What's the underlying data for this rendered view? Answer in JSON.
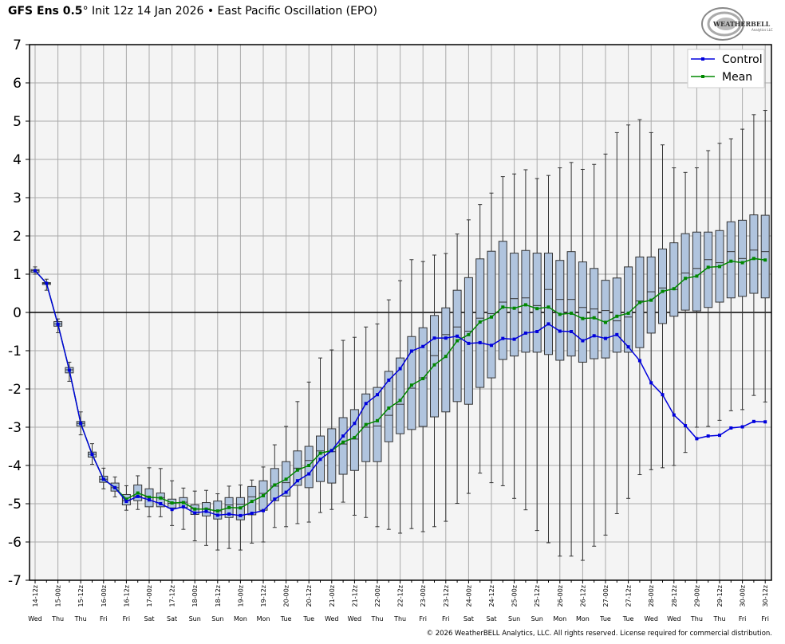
{
  "title": {
    "model": "GFS Ens 0.5",
    "degree": "°",
    "rest": " Init 12z 14 Jan 2026 • East Pacific Oscillation (EPO)"
  },
  "logo": {
    "name": "WeatherBELL",
    "sub": "Analytics LLC"
  },
  "copyright": "© 2026 WeatherBELL Analytics, LLC. All rights reserved. License required for commercial distribution.",
  "colors": {
    "control": "#0000dd",
    "mean": "#008800",
    "box": "#b0c4de",
    "plot_bg": "#f4f4f4",
    "grid": "#aaaaaa"
  },
  "chart_data": {
    "type": "line",
    "title": "GFS Ens 0.5° Init 12z 14 Jan 2026 • East Pacific Oscillation (EPO)",
    "ylim": [
      -7,
      7
    ],
    "yticks": [
      7,
      6,
      5,
      4,
      3,
      2,
      1,
      0,
      -1,
      -2,
      -3,
      -4,
      -5,
      -6,
      -7
    ],
    "grid": true,
    "legend_position": "top-right",
    "x_step_hours": 6,
    "xtick_labels": [
      "14-12z",
      "15-00z",
      "15-12z",
      "16-00z",
      "16-12z",
      "17-00z",
      "17-12z",
      "18-00z",
      "18-12z",
      "19-00z",
      "19-12z",
      "20-00z",
      "20-12z",
      "21-00z",
      "21-12z",
      "22-00z",
      "22-12z",
      "23-00z",
      "23-12z",
      "24-00z",
      "24-12z",
      "25-00z",
      "25-12z",
      "26-00z",
      "26-12z",
      "27-00z",
      "27-12z",
      "28-00z",
      "28-12z",
      "29-00z",
      "29-12z",
      "30-00z",
      "30-12z"
    ],
    "xtick_days": [
      "Wed",
      "Thu",
      "Thu",
      "Fri",
      "Fri",
      "Sat",
      "Sat",
      "Sun",
      "Sun",
      "Mon",
      "Mon",
      "Tue",
      "Tue",
      "Wed",
      "Wed",
      "Thu",
      "Thu",
      "Fri",
      "Fri",
      "Sat",
      "Sat",
      "Sun",
      "Sun",
      "Mon",
      "Mon",
      "Tue",
      "Tue",
      "Wed",
      "Wed",
      "Thu",
      "Thu",
      "Fri",
      "Fri"
    ],
    "series": [
      {
        "name": "Control",
        "values": [
          1.09,
          0.76,
          -0.31,
          -1.51,
          -2.9,
          -3.71,
          -4.36,
          -4.58,
          -4.94,
          -4.81,
          -4.9,
          -5.0,
          -5.15,
          -5.08,
          -5.24,
          -5.2,
          -5.3,
          -5.27,
          -5.31,
          -5.25,
          -5.18,
          -4.88,
          -4.7,
          -4.4,
          -4.22,
          -3.84,
          -3.61,
          -3.23,
          -2.9,
          -2.38,
          -2.15,
          -1.77,
          -1.47,
          -1.01,
          -0.89,
          -0.67,
          -0.67,
          -0.62,
          -0.81,
          -0.79,
          -0.86,
          -0.68,
          -0.7,
          -0.54,
          -0.5,
          -0.3,
          -0.49,
          -0.5,
          -0.74,
          -0.61,
          -0.68,
          -0.58,
          -0.9,
          -1.26,
          -1.84,
          -2.15,
          -2.68,
          -2.96,
          -3.3,
          -3.23,
          -3.21,
          -3.02,
          -2.99,
          -2.85,
          -2.86
        ]
      },
      {
        "name": "Mean",
        "values": [
          1.09,
          0.76,
          -0.31,
          -1.51,
          -2.9,
          -3.71,
          -4.36,
          -4.58,
          -4.88,
          -4.72,
          -4.83,
          -4.85,
          -4.98,
          -4.97,
          -5.14,
          -5.14,
          -5.19,
          -5.1,
          -5.11,
          -4.94,
          -4.79,
          -4.51,
          -4.36,
          -4.12,
          -4.0,
          -3.68,
          -3.61,
          -3.39,
          -3.27,
          -2.93,
          -2.83,
          -2.5,
          -2.3,
          -1.9,
          -1.73,
          -1.37,
          -1.15,
          -0.74,
          -0.58,
          -0.25,
          -0.12,
          0.14,
          0.11,
          0.2,
          0.1,
          0.14,
          -0.05,
          -0.02,
          -0.16,
          -0.14,
          -0.26,
          -0.1,
          -0.02,
          0.26,
          0.32,
          0.55,
          0.62,
          0.89,
          0.95,
          1.18,
          1.2,
          1.34,
          1.3,
          1.41,
          1.37
        ]
      }
    ],
    "boxes_min_q1_median_q3_max": [
      [
        1.0,
        1.05,
        1.09,
        1.12,
        1.19
      ],
      [
        0.58,
        0.73,
        0.76,
        0.78,
        0.87
      ],
      [
        -0.53,
        -0.36,
        -0.3,
        -0.24,
        -0.17
      ],
      [
        -1.8,
        -1.58,
        -1.5,
        -1.44,
        -1.3
      ],
      [
        -3.2,
        -2.97,
        -2.9,
        -2.85,
        -2.6
      ],
      [
        -3.97,
        -3.78,
        -3.71,
        -3.65,
        -3.43
      ],
      [
        -4.61,
        -4.44,
        -4.36,
        -4.28,
        -4.07
      ],
      [
        -4.82,
        -4.67,
        -4.58,
        -4.46,
        -4.3
      ],
      [
        -5.17,
        -5.03,
        -4.92,
        -4.76,
        -4.53
      ],
      [
        -5.15,
        -4.92,
        -4.8,
        -4.51,
        -4.27
      ],
      [
        -5.34,
        -5.08,
        -4.83,
        -4.61,
        -4.06
      ],
      [
        -5.34,
        -5.08,
        -4.84,
        -4.72,
        -4.08
      ],
      [
        -5.57,
        -5.11,
        -4.99,
        -4.88,
        -4.4
      ],
      [
        -5.67,
        -5.1,
        -4.96,
        -4.84,
        -4.59
      ],
      [
        -5.97,
        -5.28,
        -5.13,
        -5.03,
        -4.67
      ],
      [
        -6.09,
        -5.32,
        -5.13,
        -4.97,
        -4.65
      ],
      [
        -6.21,
        -5.4,
        -5.19,
        -4.93,
        -4.74
      ],
      [
        -6.17,
        -5.36,
        -5.03,
        -4.84,
        -4.54
      ],
      [
        -6.21,
        -5.42,
        -5.01,
        -4.84,
        -4.51
      ],
      [
        -6.03,
        -5.29,
        -4.82,
        -4.55,
        -4.38
      ],
      [
        -6.0,
        -5.17,
        -4.73,
        -4.4,
        -4.04
      ],
      [
        -5.62,
        -4.92,
        -4.54,
        -4.08,
        -3.46
      ],
      [
        -5.6,
        -4.8,
        -4.45,
        -3.9,
        -2.98
      ],
      [
        -5.52,
        -4.52,
        -4.07,
        -3.62,
        -2.33
      ],
      [
        -5.48,
        -4.58,
        -3.87,
        -3.5,
        -1.82
      ],
      [
        -5.23,
        -4.42,
        -3.62,
        -3.23,
        -1.19
      ],
      [
        -5.15,
        -4.46,
        -3.64,
        -3.04,
        -0.98
      ],
      [
        -4.96,
        -4.23,
        -3.44,
        -2.75,
        -0.73
      ],
      [
        -5.3,
        -4.13,
        -3.31,
        -2.54,
        -0.65
      ],
      [
        -5.36,
        -3.9,
        -3.0,
        -2.13,
        -0.38
      ],
      [
        -5.6,
        -3.9,
        -2.97,
        -1.96,
        -0.3
      ],
      [
        -5.67,
        -3.38,
        -2.69,
        -1.54,
        0.33
      ],
      [
        -5.77,
        -3.17,
        -2.4,
        -1.19,
        0.83
      ],
      [
        -5.65,
        -3.06,
        -1.98,
        -0.63,
        1.38
      ],
      [
        -5.73,
        -2.98,
        -1.71,
        -0.4,
        1.33
      ],
      [
        -5.6,
        -2.73,
        -1.13,
        -0.08,
        1.5
      ],
      [
        -5.46,
        -2.6,
        -0.58,
        0.12,
        1.54
      ],
      [
        -4.99,
        -2.33,
        -0.38,
        0.58,
        2.05
      ],
      [
        -4.73,
        -2.4,
        -0.49,
        0.91,
        2.42
      ],
      [
        -4.2,
        -1.96,
        -0.15,
        1.4,
        2.82
      ],
      [
        -4.45,
        -1.71,
        -0.03,
        1.6,
        3.12
      ],
      [
        -4.53,
        -1.23,
        0.27,
        1.86,
        3.55
      ],
      [
        -4.86,
        -1.14,
        0.36,
        1.55,
        3.62
      ],
      [
        -5.16,
        -1.04,
        0.38,
        1.62,
        3.73
      ],
      [
        -5.7,
        -1.04,
        0.18,
        1.55,
        3.5
      ],
      [
        -6.02,
        -1.1,
        0.6,
        1.55,
        3.58
      ],
      [
        -6.37,
        -1.25,
        0.34,
        1.36,
        3.78
      ],
      [
        -6.37,
        -1.14,
        0.34,
        1.59,
        3.92
      ],
      [
        -6.48,
        -1.3,
        0.13,
        1.32,
        3.74
      ],
      [
        -6.11,
        -1.21,
        0.09,
        1.15,
        3.87
      ],
      [
        -5.82,
        -1.19,
        0.05,
        0.84,
        4.14
      ],
      [
        -5.26,
        -1.04,
        -0.22,
        0.9,
        4.7
      ],
      [
        -4.86,
        -1.04,
        -0.12,
        1.19,
        4.9
      ],
      [
        -4.24,
        -0.92,
        0.3,
        1.45,
        5.04
      ],
      [
        -4.11,
        -0.54,
        0.54,
        1.45,
        4.7
      ],
      [
        -4.06,
        -0.29,
        0.64,
        1.66,
        4.38
      ],
      [
        -4.0,
        -0.1,
        0.6,
        1.82,
        3.78
      ],
      [
        -3.66,
        0.06,
        1.03,
        2.06,
        3.66
      ],
      [
        -3.0,
        0.04,
        1.15,
        2.1,
        3.78
      ],
      [
        -2.98,
        0.13,
        1.38,
        2.1,
        4.23
      ],
      [
        -2.82,
        0.27,
        1.3,
        2.14,
        4.42
      ],
      [
        -2.57,
        0.38,
        1.59,
        2.37,
        4.54
      ],
      [
        -2.54,
        0.42,
        1.41,
        2.41,
        4.79
      ],
      [
        -2.17,
        0.5,
        1.63,
        2.55,
        5.17
      ],
      [
        -2.34,
        0.38,
        1.59,
        2.54,
        5.28
      ]
    ]
  }
}
